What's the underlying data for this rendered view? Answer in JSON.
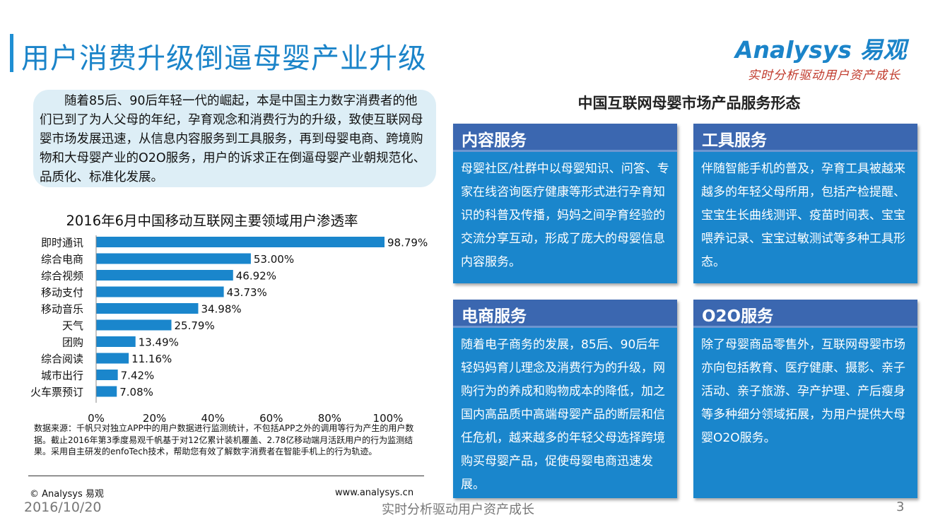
{
  "header": {
    "title": "用户消费升级倒逼母婴产业升级",
    "logo_text": "Analysys 易观",
    "logo_slogan": "实时分析驱动用户资产成长"
  },
  "intro": {
    "text": "随着85后、90后年轻一代的崛起，本是中国主力数字消费者的他们已到了为人父母的年纪，孕育观念和消费行为的升级，致使互联网母婴市场发展迅速，从信息内容服务到工具服务，再到母婴电商、跨境购物和大母婴产业的O2O服务，用户的诉求正在倒逼母婴产业朝规范化、品质化、标准化发展。"
  },
  "chart_data": {
    "type": "bar",
    "orientation": "horizontal",
    "title": "2016年6月中国移动互联网主要领域用户渗透率",
    "categories": [
      "即时通讯",
      "综合电商",
      "综合视频",
      "移动支付",
      "移动音乐",
      "天气",
      "团购",
      "综合阅读",
      "城市出行",
      "火车票预订"
    ],
    "values": [
      98.79,
      53.0,
      46.92,
      43.73,
      34.98,
      25.79,
      13.49,
      11.16,
      7.42,
      7.08
    ],
    "value_labels": [
      "98.79%",
      "53.00%",
      "46.92%",
      "43.73%",
      "34.98%",
      "25.79%",
      "13.49%",
      "11.16%",
      "7.42%",
      "7.08%"
    ],
    "x_ticks": [
      "0%",
      "20%",
      "40%",
      "60%",
      "80%",
      "100%"
    ],
    "xlim": [
      0,
      100
    ],
    "xlabel": "",
    "ylabel": "",
    "bar_color": "#1a86cc",
    "grid": false
  },
  "source": {
    "text": "数据来源：千帆只对独立APP中的用户数据进行监测统计，不包括APP之外的调用等行为产生的用户数据。截止2016年第3季度易观千帆基于对12亿累计装机覆盖、2.78亿移动端月活跃用户的行为监测结果。采用自主研发的enfoTech技术，帮助您有效了解数字消费者在智能手机上的行为轨迹。"
  },
  "market": {
    "title": "中国互联网母婴市场产品服务形态",
    "cards": [
      {
        "title": "内容服务",
        "body": "母婴社区/社群中以母婴知识、问答、专家在线咨询医疗健康等形式进行孕育知识的科普及传播，妈妈之间孕育经验的交流分享互动，形成了庞大的母婴信息内容服务。"
      },
      {
        "title": "工具服务",
        "body": "伴随智能手机的普及，孕育工具被越来越多的年轻父母所用，包括产检提醒、宝宝生长曲线测评、疫苗时间表、宝宝喂养记录、宝宝过敏测试等多种工具形态。"
      },
      {
        "title": "电商服务",
        "body": "随着电子商务的发展，85后、90后年轻妈妈育儿理念及消费行为的升级，网购行为的养成和购物成本的降低，加之国内高品质中高端母婴产品的断层和信任危机，越来越多的年轻父母选择跨境购买母婴产品，促使母婴电商迅速发展。"
      },
      {
        "title": "O2O服务",
        "body": "除了母婴商品零售外，互联网母婴市场亦向包括教育、医疗健康、摄影、亲子活动、亲子旅游、孕产护理、产后瘦身等多种细分领域拓展，为用户提供大母婴O2O服务。"
      }
    ]
  },
  "footer": {
    "copyright": "© Analysys 易观",
    "website": "www.analysys.cn",
    "date": "2016/10/20",
    "slogan": "实时分析驱动用户资产成长",
    "page": "3"
  }
}
